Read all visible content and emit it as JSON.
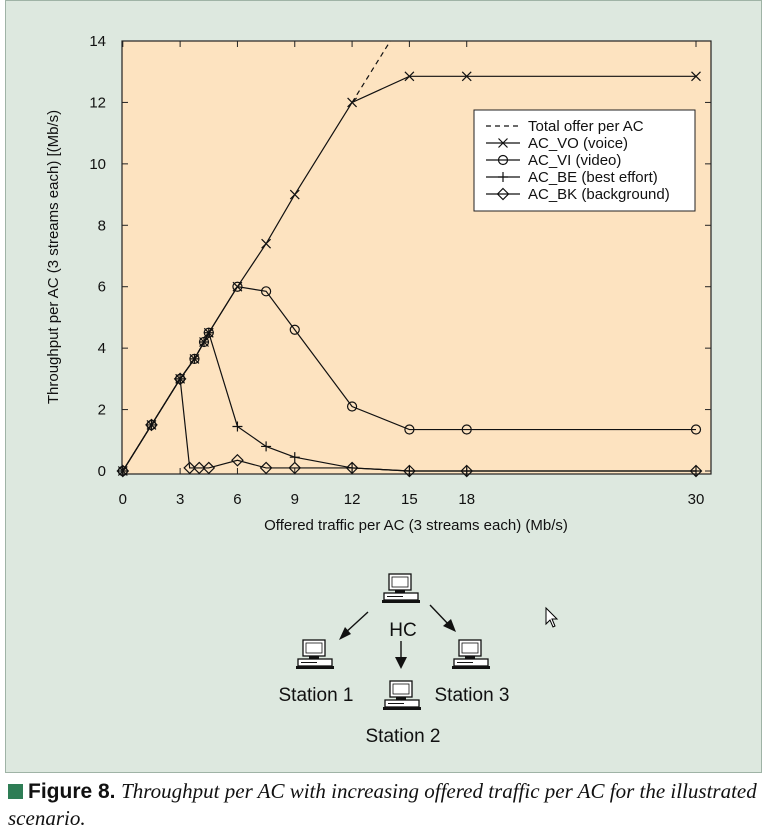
{
  "chart_data": {
    "type": "line",
    "title": "",
    "xlabel": "Offered traffic per AC (3 streams each) (Mb/s)",
    "ylabel": "Throughput per AC (3 streams each) [(Mb/s)",
    "xlim": [
      0,
      30
    ],
    "ylim": [
      0,
      14
    ],
    "x_ticks": [
      0,
      3,
      6,
      9,
      12,
      15,
      18,
      30
    ],
    "y_ticks": [
      0,
      2,
      4,
      6,
      8,
      10,
      12,
      14
    ],
    "x_tick_labels": [
      "0",
      "3",
      "6",
      "9",
      "12",
      "15",
      "18",
      "30"
    ],
    "y_tick_labels": [
      "0",
      "2",
      "4",
      "6",
      "8",
      "10",
      "12",
      "14"
    ],
    "background_color": "#fde3c0",
    "grid": false,
    "legend_position": "top-right",
    "series": [
      {
        "name": "Total offer per AC",
        "style": "dashed",
        "marker": "none",
        "points": [
          [
            12,
            12
          ],
          [
            14.5,
            14.5
          ]
        ]
      },
      {
        "name": "AC_VO (voice)",
        "style": "solid",
        "marker": "x",
        "points": [
          [
            0,
            0
          ],
          [
            1.5,
            1.5
          ],
          [
            3,
            3
          ],
          [
            3.75,
            3.65
          ],
          [
            4.25,
            4.2
          ],
          [
            4.5,
            4.5
          ],
          [
            6,
            6
          ],
          [
            7.5,
            7.4
          ],
          [
            9,
            9
          ],
          [
            12,
            12
          ],
          [
            15,
            12.85
          ],
          [
            18,
            12.85
          ],
          [
            30,
            12.85
          ]
        ]
      },
      {
        "name": "AC_VI (video)",
        "style": "solid",
        "marker": "circle",
        "points": [
          [
            0,
            0
          ],
          [
            1.5,
            1.5
          ],
          [
            3,
            3
          ],
          [
            3.75,
            3.65
          ],
          [
            4.25,
            4.2
          ],
          [
            4.5,
            4.5
          ],
          [
            6,
            6
          ],
          [
            7.5,
            5.85
          ],
          [
            9,
            4.6
          ],
          [
            12,
            2.1
          ],
          [
            15,
            1.35
          ],
          [
            18,
            1.35
          ],
          [
            30,
            1.35
          ]
        ]
      },
      {
        "name": "AC_BE (best effort)",
        "style": "solid",
        "marker": "plus",
        "points": [
          [
            0,
            0
          ],
          [
            1.5,
            1.5
          ],
          [
            3,
            3
          ],
          [
            3.75,
            3.65
          ],
          [
            4.25,
            4.2
          ],
          [
            4.5,
            4.5
          ],
          [
            6,
            1.45
          ],
          [
            7.5,
            0.8
          ],
          [
            9,
            0.45
          ],
          [
            12,
            0.1
          ],
          [
            15,
            0
          ],
          [
            18,
            0
          ],
          [
            30,
            0
          ]
        ]
      },
      {
        "name": "AC_BK (background)",
        "style": "solid",
        "marker": "diamond",
        "points": [
          [
            0,
            0
          ],
          [
            1.5,
            1.5
          ],
          [
            3,
            3
          ],
          [
            3.5,
            0.1
          ],
          [
            4,
            0.1
          ],
          [
            4.5,
            0.1
          ],
          [
            6,
            0.35
          ],
          [
            7.5,
            0.1
          ],
          [
            9,
            0.1
          ],
          [
            12,
            0.1
          ],
          [
            15,
            0
          ],
          [
            18,
            0
          ],
          [
            30,
            0
          ]
        ]
      }
    ]
  },
  "diagram": {
    "hc_label": "HC",
    "station1_label": "Station 1",
    "station2_label": "Station 2",
    "station3_label": "Station 3"
  },
  "caption": {
    "label": "Figure 8.",
    "text": "Throughput per AC with increasing offered traffic per AC for the illustrated scenario."
  }
}
